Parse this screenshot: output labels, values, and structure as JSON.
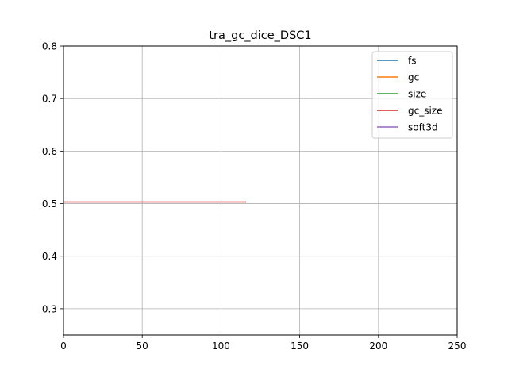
{
  "chart_data": {
    "type": "line",
    "title": "tra_gc_dice_DSC1",
    "xlabel": "",
    "ylabel": "",
    "xlim": [
      0,
      250
    ],
    "ylim": [
      0.25,
      0.8
    ],
    "xticks": [
      "0",
      "50",
      "100",
      "150",
      "200",
      "250"
    ],
    "yticks": [
      "0.3",
      "0.4",
      "0.5",
      "0.6",
      "0.7",
      "0.8"
    ],
    "grid": true,
    "legend_position": "top-right",
    "series": [
      {
        "name": "fs",
        "color": "#1f77b4",
        "x": [],
        "y": []
      },
      {
        "name": "gc",
        "color": "#ff7f0e",
        "x": [],
        "y": []
      },
      {
        "name": "size",
        "color": "#2ca02c",
        "x": [],
        "y": []
      },
      {
        "name": "gc_size",
        "color": "#d62728",
        "x": [
          0,
          116
        ],
        "y": [
          0.503,
          0.503
        ]
      },
      {
        "name": "soft3d",
        "color": "#9467bd",
        "x": [],
        "y": []
      }
    ]
  }
}
